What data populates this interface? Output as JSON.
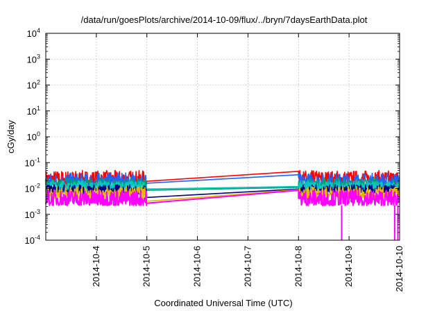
{
  "chart_data": {
    "type": "line",
    "title": "/data/run/goesPlots/archive/2014-10-09/flux/../bryn/7daysEarthData.plot",
    "xlabel": "Coordinated Universal Time (UTC)",
    "ylabel": "cGy/day",
    "yscale": "log",
    "ylim": [
      0.0001,
      10000
    ],
    "xlim": [
      "2014-10-03T00:00",
      "2014-10-10T00:00"
    ],
    "x_ticks": [
      "2014-10-4",
      "2014-10-5",
      "2014-10-6",
      "2014-10-7",
      "2014-10-8",
      "2014-10-9",
      "2014-10-10"
    ],
    "y_ticks": [
      {
        "base": "10",
        "exp": "-4"
      },
      {
        "base": "10",
        "exp": "-3"
      },
      {
        "base": "10",
        "exp": "-2"
      },
      {
        "base": "10",
        "exp": "-1"
      },
      {
        "base": "10",
        "exp": "0"
      },
      {
        "base": "10",
        "exp": "1"
      },
      {
        "base": "10",
        "exp": "2"
      },
      {
        "base": "10",
        "exp": "3"
      },
      {
        "base": "10",
        "exp": "4"
      }
    ],
    "grid": true,
    "data_gap": [
      "2014-10-05T00:00",
      "2014-10-08T00:00"
    ],
    "series": [
      {
        "color": "#ff0000",
        "low": 0.014,
        "high": 0.05,
        "at_gap_start": 0.019,
        "at_gap_end": 0.046
      },
      {
        "color": "#1e64ff",
        "low": 0.011,
        "high": 0.04,
        "at_gap_start": 0.016,
        "at_gap_end": 0.034
      },
      {
        "color": "#009e73",
        "low": 0.009,
        "high": 0.025,
        "at_gap_start": 0.0085,
        "at_gap_end": 0.011
      },
      {
        "color": "#00c8c8",
        "low": 0.008,
        "high": 0.02,
        "at_gap_start": 0.0095,
        "at_gap_end": 0.012
      },
      {
        "color": "#000080",
        "low": 0.006,
        "high": 0.014,
        "at_gap_start": 0.0045,
        "at_gap_end": 0.0095
      },
      {
        "color": "#e6b800",
        "low": 0.004,
        "high": 0.012,
        "at_gap_start": 0.0032,
        "at_gap_end": 0.009
      },
      {
        "color": "#ff00ff",
        "low": 0.0022,
        "high": 0.009,
        "at_gap_start": 0.0027,
        "at_gap_end": 0.0085,
        "dips": [
          {
            "x": "2014-10-08T20:30",
            "y": 0.0001
          },
          {
            "x": "2014-10-09T21:40",
            "y": 0.0001
          },
          {
            "x": "2014-10-09T23:10",
            "y": 0.0001
          }
        ]
      }
    ]
  }
}
